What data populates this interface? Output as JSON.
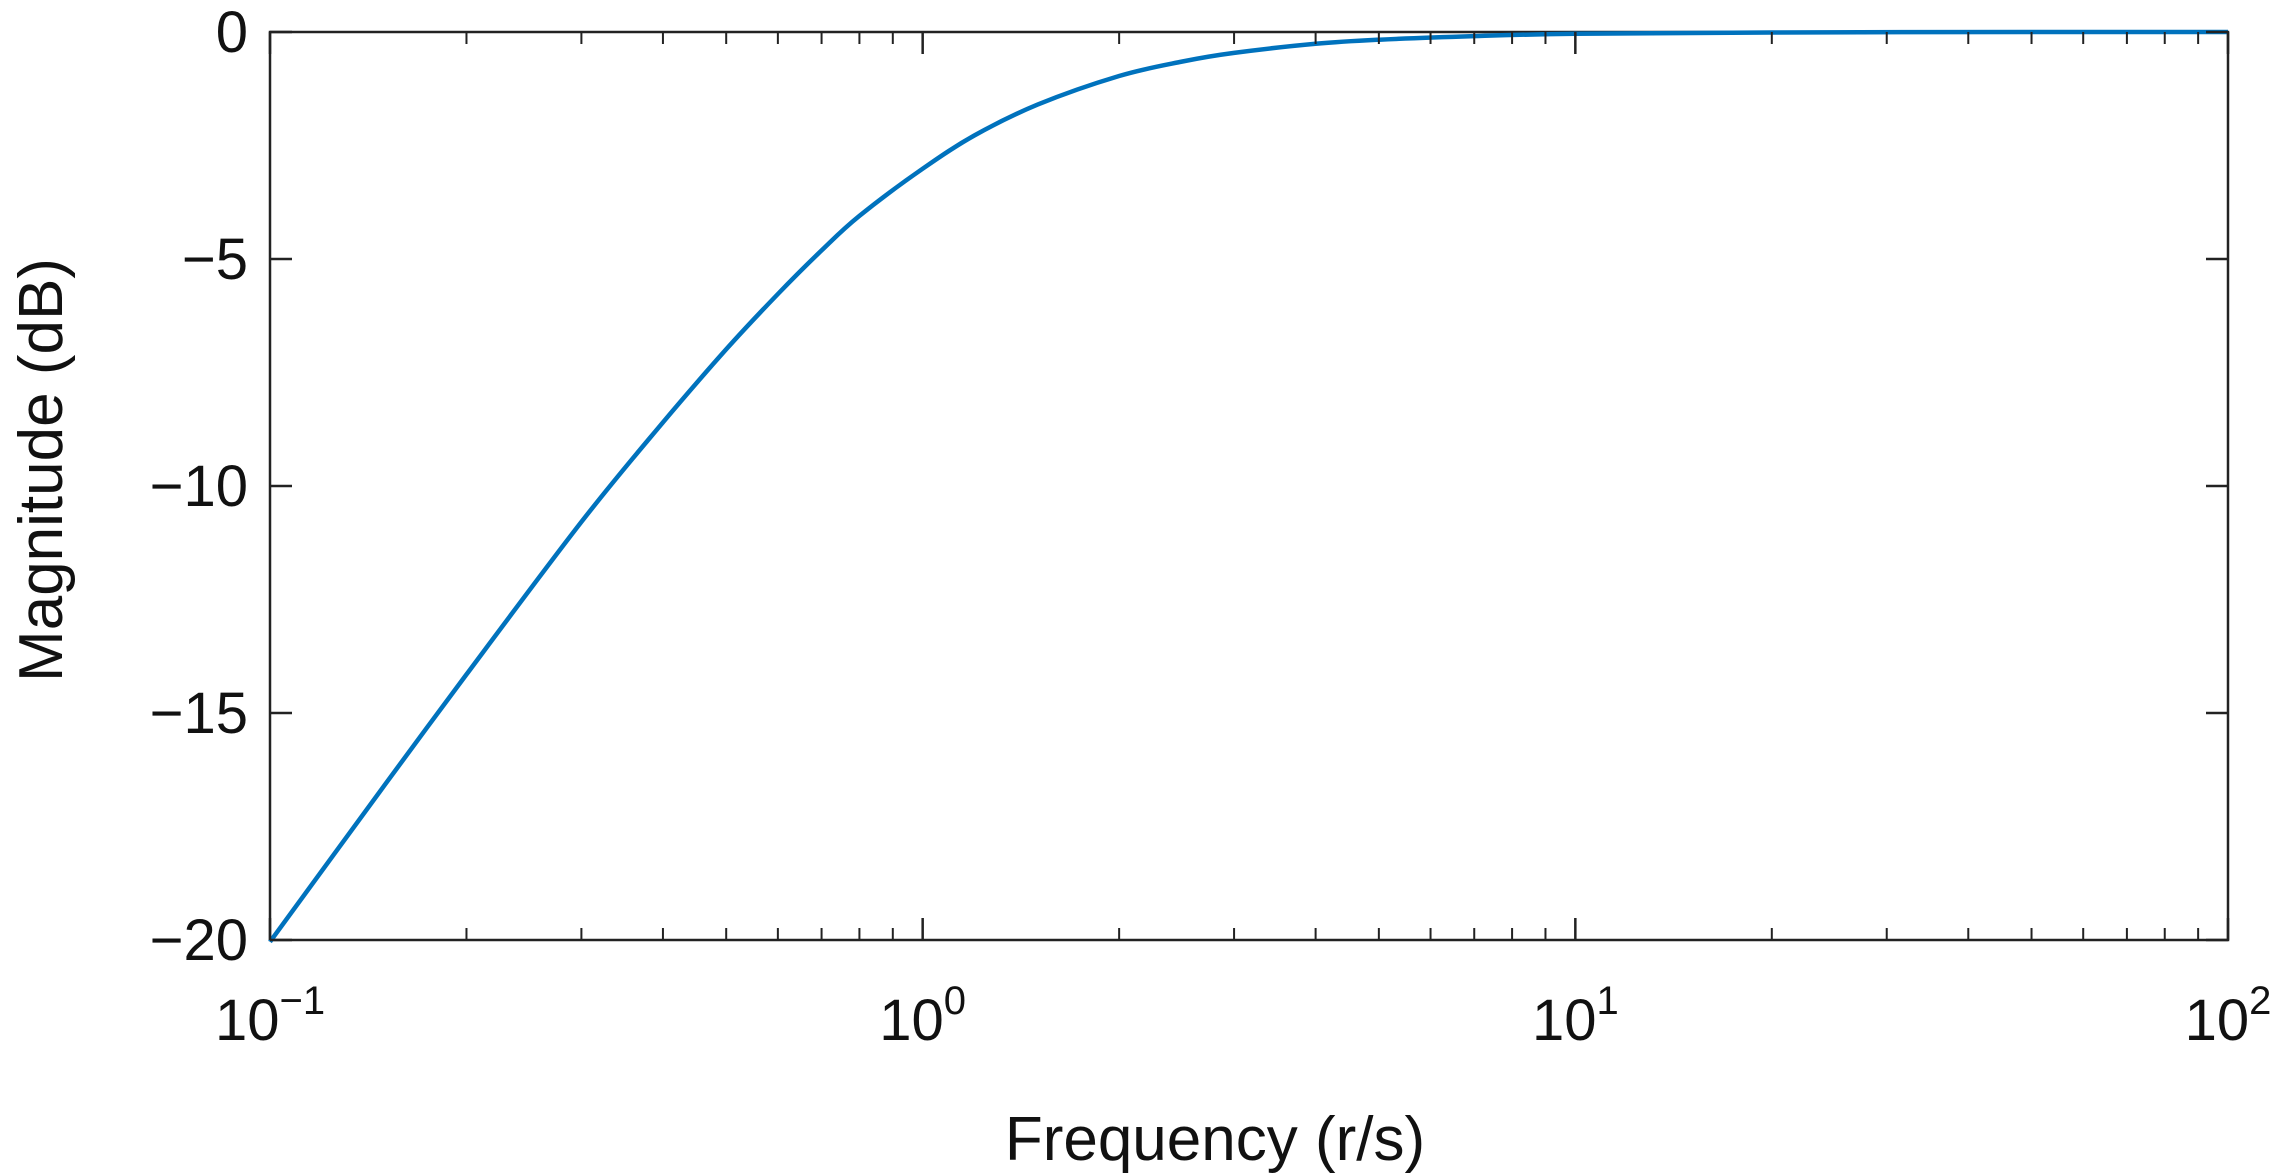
{
  "chart_data": {
    "type": "line",
    "title": "",
    "xlabel": "Frequency (r/s)",
    "ylabel": "Magnitude (dB)",
    "xscale": "log",
    "xlim": [
      0.1,
      100
    ],
    "ylim": [
      -20,
      0
    ],
    "x_ticks": [
      {
        "value": 0.1,
        "base": "10",
        "exp": "−1"
      },
      {
        "value": 1,
        "base": "10",
        "exp": "0"
      },
      {
        "value": 10,
        "base": "10",
        "exp": "1"
      },
      {
        "value": 100,
        "base": "10",
        "exp": "2"
      }
    ],
    "y_ticks": [
      {
        "value": 0,
        "label": "0"
      },
      {
        "value": -5,
        "label": "−5"
      },
      {
        "value": -10,
        "label": "−10"
      },
      {
        "value": -15,
        "label": "−15"
      },
      {
        "value": -20,
        "label": "−20"
      }
    ],
    "grid": false,
    "line_color": "#0072BD",
    "series": [
      {
        "x": [
          0.1,
          0.15,
          0.2,
          0.3,
          0.4,
          0.5,
          0.6,
          0.7,
          0.8,
          1.0,
          1.2,
          1.5,
          2.0,
          2.5,
          3.0,
          4.0,
          5.0,
          7.0,
          10.0,
          20.0,
          50.0,
          100.0
        ],
        "values": [
          -20.04,
          -16.58,
          -14.15,
          -10.79,
          -8.6,
          -6.99,
          -5.77,
          -4.81,
          -4.05,
          -3.01,
          -2.28,
          -1.6,
          -0.97,
          -0.65,
          -0.46,
          -0.26,
          -0.17,
          -0.09,
          -0.04,
          -0.01,
          0.0,
          0.0
        ]
      }
    ]
  }
}
